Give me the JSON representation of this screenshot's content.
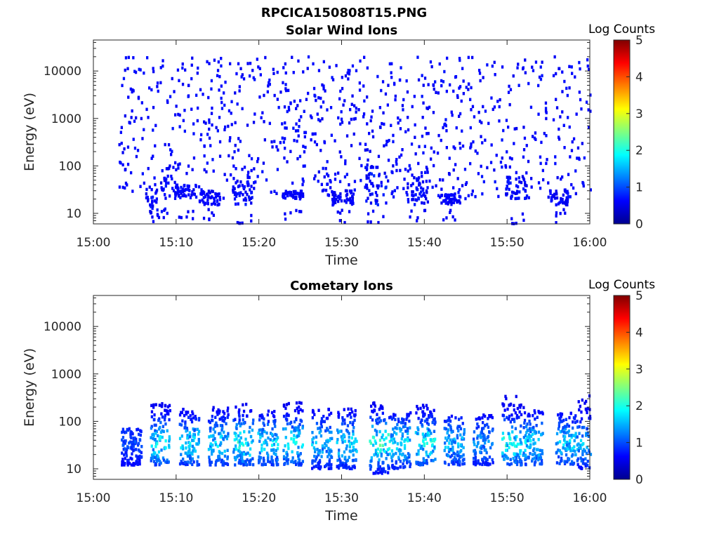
{
  "figure": {
    "title": "RPCICA150808T15.PNG",
    "colors": {
      "axes": "#262626",
      "background": "#ffffff"
    }
  },
  "chart_data": [
    {
      "type": "heatmap",
      "title": "Solar Wind Ions",
      "xlabel": "Time",
      "ylabel": "Energy (eV)",
      "x_ticks": [
        "15:00",
        "15:10",
        "15:20",
        "15:30",
        "15:40",
        "15:50",
        "16:00"
      ],
      "x_range": [
        "15:00",
        "16:00"
      ],
      "y_scale": "log",
      "y_ticks": [
        10,
        100,
        1000,
        10000
      ],
      "y_tick_labels": [
        "10",
        "100",
        "1000",
        "10000"
      ],
      "y_range": [
        6,
        45000
      ],
      "colorbar": {
        "label": "Log Counts",
        "range": [
          0,
          5
        ],
        "ticks": [
          "0",
          "1",
          "2",
          "3",
          "4",
          "5"
        ],
        "colormap": "jet"
      },
      "grid": false,
      "description_of_data": "sparse single-count (log counts ~0) pixels scattered 15:03-16:00 across ~20-20000 eV; denser patches near 15-70 eV around 15:07, 15:18, 15:34, 15:39, 15:51, 15:55",
      "clusters": [
        {
          "time": "15:07.5",
          "energy": [
            10,
            60
          ],
          "level": 0.3
        },
        {
          "time": "15:11",
          "energy": [
            20,
            40
          ],
          "level": 0.25
        },
        {
          "time": "15:14",
          "energy": [
            15,
            30
          ],
          "level": 0.2
        },
        {
          "time": "15:18",
          "energy": [
            15,
            50
          ],
          "level": 0.3
        },
        {
          "time": "15:24",
          "energy": [
            20,
            30
          ],
          "level": 0.2
        },
        {
          "time": "15:30",
          "energy": [
            15,
            30
          ],
          "level": 0.2
        },
        {
          "time": "15:34",
          "energy": [
            15,
            100
          ],
          "level": 0.4
        },
        {
          "time": "15:39",
          "energy": [
            15,
            60
          ],
          "level": 0.3
        },
        {
          "time": "15:43",
          "energy": [
            15,
            25
          ],
          "level": 0.2
        },
        {
          "time": "15:51",
          "energy": [
            20,
            60
          ],
          "level": 0.3
        },
        {
          "time": "15:56",
          "energy": [
            15,
            30
          ],
          "level": 0.25
        }
      ]
    },
    {
      "type": "heatmap",
      "title": "Cometary Ions",
      "xlabel": "Time",
      "ylabel": "Energy (eV)",
      "x_ticks": [
        "15:00",
        "15:10",
        "15:20",
        "15:30",
        "15:40",
        "15:50",
        "16:00"
      ],
      "x_range": [
        "15:00",
        "16:00"
      ],
      "y_scale": "log",
      "y_ticks": [
        10,
        100,
        1000,
        10000
      ],
      "y_tick_labels": [
        "10",
        "100",
        "1000",
        "10000"
      ],
      "y_range": [
        6,
        45000
      ],
      "colorbar": {
        "label": "Log Counts",
        "range": [
          0,
          5
        ],
        "ticks": [
          "0",
          "1",
          "2",
          "3",
          "4",
          "5"
        ],
        "colormap": "jet"
      },
      "grid": false,
      "description_of_data": "periodic bursts of cometary ions from ~10 to ~300 eV, peak log counts ~1.5-2",
      "bursts": [
        {
          "time": "15:04.5",
          "energy": [
            12,
            70
          ],
          "peak": 0.6
        },
        {
          "time": "15:08",
          "energy": [
            12,
            250
          ],
          "peak": 1.6
        },
        {
          "time": "15:11.5",
          "energy": [
            12,
            180
          ],
          "peak": 1.5
        },
        {
          "time": "15:15",
          "energy": [
            12,
            200
          ],
          "peak": 1.5
        },
        {
          "time": "15:18",
          "energy": [
            12,
            230
          ],
          "peak": 1.8
        },
        {
          "time": "15:21",
          "energy": [
            12,
            170
          ],
          "peak": 1.5
        },
        {
          "time": "15:24",
          "energy": [
            12,
            250
          ],
          "peak": 1.6
        },
        {
          "time": "15:27.5",
          "energy": [
            10,
            180
          ],
          "peak": 1.3
        },
        {
          "time": "15:30.5",
          "energy": [
            10,
            200
          ],
          "peak": 1.5
        },
        {
          "time": "15:34.5",
          "energy": [
            8,
            250
          ],
          "peak": 2.0
        },
        {
          "time": "15:37",
          "energy": [
            10,
            160
          ],
          "peak": 1.5
        },
        {
          "time": "15:40",
          "energy": [
            12,
            220
          ],
          "peak": 1.7
        },
        {
          "time": "15:43.5",
          "energy": [
            12,
            130
          ],
          "peak": 1.3
        },
        {
          "time": "15:47",
          "energy": [
            12,
            150
          ],
          "peak": 1.0
        },
        {
          "time": "15:50.5",
          "energy": [
            12,
            350
          ],
          "peak": 1.8
        },
        {
          "time": "15:53",
          "energy": [
            12,
            200
          ],
          "peak": 1.5
        },
        {
          "time": "15:57",
          "energy": [
            12,
            150
          ],
          "peak": 1.4
        },
        {
          "time": "15:59.5",
          "energy": [
            10,
            350
          ],
          "peak": 1.3
        }
      ]
    }
  ]
}
